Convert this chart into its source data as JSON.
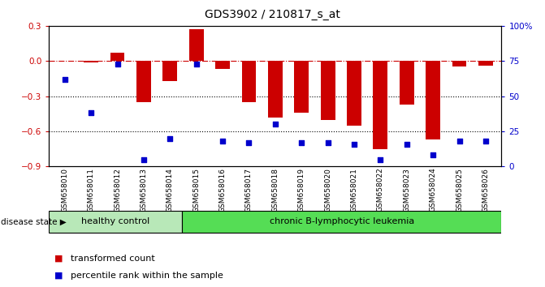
{
  "title": "GDS3902 / 210817_s_at",
  "categories": [
    "GSM658010",
    "GSM658011",
    "GSM658012",
    "GSM658013",
    "GSM658014",
    "GSM658015",
    "GSM658016",
    "GSM658017",
    "GSM658018",
    "GSM658019",
    "GSM658020",
    "GSM658021",
    "GSM658022",
    "GSM658023",
    "GSM658024",
    "GSM658025",
    "GSM658026"
  ],
  "bar_values": [
    0.005,
    -0.01,
    0.07,
    -0.35,
    -0.17,
    0.27,
    -0.07,
    -0.35,
    -0.48,
    -0.44,
    -0.5,
    -0.55,
    -0.75,
    -0.37,
    -0.67,
    -0.05,
    -0.04
  ],
  "dot_values_pct": [
    62,
    38,
    73,
    5,
    20,
    73,
    18,
    17,
    30,
    17,
    17,
    16,
    5,
    16,
    8,
    18,
    18
  ],
  "ylim_left": [
    -0.9,
    0.3
  ],
  "ylim_right": [
    0,
    100
  ],
  "yticks_left": [
    0.3,
    0.0,
    -0.3,
    -0.6,
    -0.9
  ],
  "yticks_right": [
    100,
    75,
    50,
    25,
    0
  ],
  "bar_color": "#cc0000",
  "dot_color": "#0000cc",
  "hline_color": "#cc0000",
  "dotted_line_color": "#000000",
  "group1_label": "healthy control",
  "group2_label": "chronic B-lymphocytic leukemia",
  "group1_count": 5,
  "group2_count": 12,
  "disease_state_label": "disease state",
  "legend_bar_label": "transformed count",
  "legend_dot_label": "percentile rank within the sample",
  "group1_color": "#b8e8b8",
  "group2_color": "#55dd55",
  "axis_bg_color": "#ffffff"
}
